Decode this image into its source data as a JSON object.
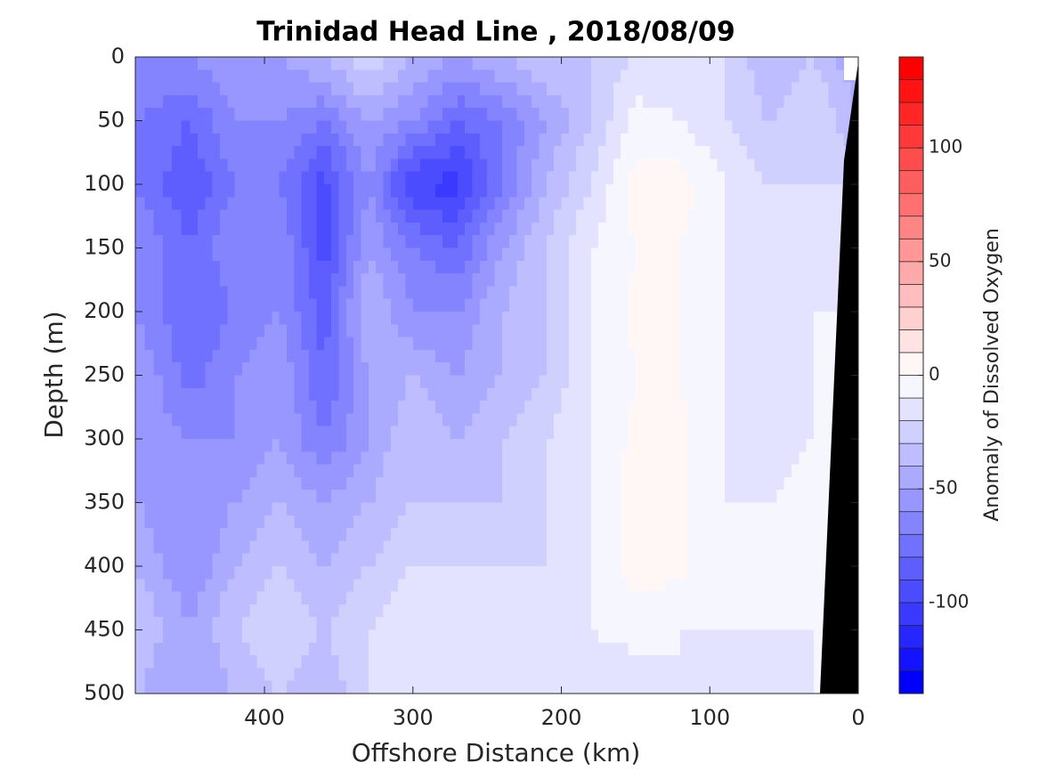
{
  "chart_data": {
    "type": "contourf",
    "title": "Trinidad Head Line , 2018/08/09",
    "x_label": "Offshore Distance (km)",
    "y_label": "Depth (m)",
    "colorbar_label": "Anomaly of Dissolved Oxygen",
    "x": [
      480,
      450,
      420,
      390,
      360,
      330,
      300,
      270,
      240,
      210,
      180,
      150,
      120,
      90,
      60,
      30,
      0
    ],
    "y": [
      0,
      50,
      100,
      150,
      200,
      250,
      300,
      350,
      400,
      450,
      500
    ],
    "z": [
      [
        -60,
        -60,
        -50,
        -50,
        -40,
        -20,
        -40,
        -50,
        -40,
        -30,
        -30,
        -20,
        -20,
        -20,
        -40,
        -30,
        -50
      ],
      [
        -70,
        -80,
        -60,
        -60,
        -70,
        -50,
        -60,
        -80,
        -70,
        -50,
        -30,
        -5,
        -10,
        -20,
        -30,
        -20,
        -40
      ],
      [
        -70,
        -90,
        -70,
        -70,
        -95,
        -60,
        -100,
        -105,
        -70,
        -40,
        -20,
        5,
        5,
        -10,
        -20,
        -20,
        -20
      ],
      [
        -60,
        -80,
        -60,
        -60,
        -95,
        -50,
        -70,
        -80,
        -50,
        -30,
        -10,
        0,
        0,
        -10,
        -20,
        -20,
        -20
      ],
      [
        -60,
        -80,
        -70,
        -60,
        -85,
        -40,
        -60,
        -60,
        -40,
        -30,
        -10,
        2,
        0,
        -10,
        -20,
        -10,
        -10
      ],
      [
        -50,
        -75,
        -60,
        -50,
        -80,
        -50,
        -40,
        -50,
        -40,
        -30,
        -10,
        0,
        0,
        -10,
        -20,
        -10,
        -10
      ],
      [
        -50,
        -60,
        -60,
        -50,
        -70,
        -50,
        -30,
        -40,
        -30,
        -20,
        -10,
        3,
        3,
        -10,
        -20,
        -10,
        -10
      ],
      [
        -50,
        -60,
        -50,
        -40,
        -50,
        -40,
        -30,
        -30,
        -30,
        -20,
        -10,
        5,
        3,
        -10,
        -10,
        0,
        -10
      ],
      [
        -40,
        -60,
        -40,
        -30,
        -40,
        -30,
        -20,
        -20,
        -20,
        -20,
        -10,
        5,
        3,
        -10,
        -10,
        -5,
        -10
      ],
      [
        -30,
        -50,
        -30,
        -20,
        -30,
        -20,
        -10,
        -20,
        -20,
        -10,
        -10,
        -5,
        -10,
        -10,
        -10,
        -10,
        -10
      ],
      [
        -40,
        -50,
        -40,
        -30,
        -40,
        -20,
        -10,
        -20,
        -20,
        -20,
        -20,
        -20,
        -10,
        -20,
        -20,
        -10,
        -10
      ]
    ],
    "xlim": [
      487,
      0
    ],
    "xticks": [
      400,
      300,
      200,
      100,
      0
    ],
    "ylim": [
      500,
      0
    ],
    "yticks": [
      0,
      50,
      100,
      150,
      200,
      250,
      300,
      350,
      400,
      450,
      500
    ],
    "levels": [
      -140,
      -130,
      -120,
      -110,
      -100,
      -90,
      -80,
      -70,
      -60,
      -50,
      -40,
      -30,
      -20,
      -10,
      0,
      10,
      20,
      30,
      40,
      50,
      60,
      70,
      80,
      90,
      100,
      110,
      120,
      130,
      140
    ],
    "colormap": [
      "#0000ff",
      "#ffffff",
      "#ff0000"
    ],
    "cticks": [
      -100,
      -50,
      0,
      50,
      100
    ]
  }
}
